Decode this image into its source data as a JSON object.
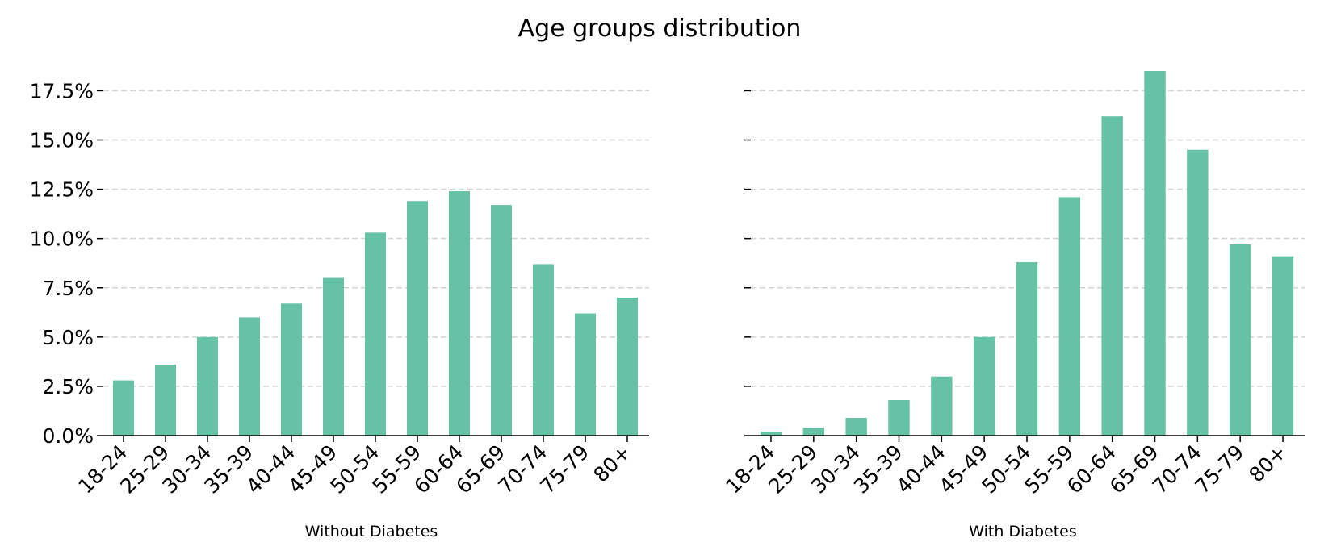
{
  "title": "Age groups distribution",
  "colors": {
    "bar": "#66c2a5",
    "grid": "#d3d3d3",
    "axis": "#000000"
  },
  "chart_data": {
    "type": "bar",
    "title": "Age groups distribution",
    "ylim": [
      0,
      18.5
    ],
    "yticks": [
      0,
      2.5,
      5.0,
      7.5,
      10.0,
      12.5,
      15.0,
      17.5
    ],
    "ytick_labels": [
      "0.0%",
      "2.5%",
      "5.0%",
      "7.5%",
      "10.0%",
      "12.5%",
      "15.0%",
      "17.5%"
    ],
    "grid": "y dashed",
    "categories": [
      "18-24",
      "25-29",
      "30-34",
      "35-39",
      "40-44",
      "45-49",
      "50-54",
      "55-59",
      "60-64",
      "65-69",
      "70-74",
      "75-79",
      "80+"
    ],
    "panels": [
      {
        "xlabel": "Without Diabetes",
        "values": [
          2.8,
          3.6,
          5.0,
          6.0,
          6.7,
          8.0,
          10.3,
          11.9,
          12.4,
          11.7,
          8.7,
          6.2,
          7.0
        ]
      },
      {
        "xlabel": "With Diabetes",
        "values": [
          0.2,
          0.4,
          0.9,
          1.8,
          3.0,
          5.0,
          8.8,
          12.1,
          16.2,
          18.5,
          14.5,
          9.7,
          9.1
        ]
      }
    ]
  }
}
